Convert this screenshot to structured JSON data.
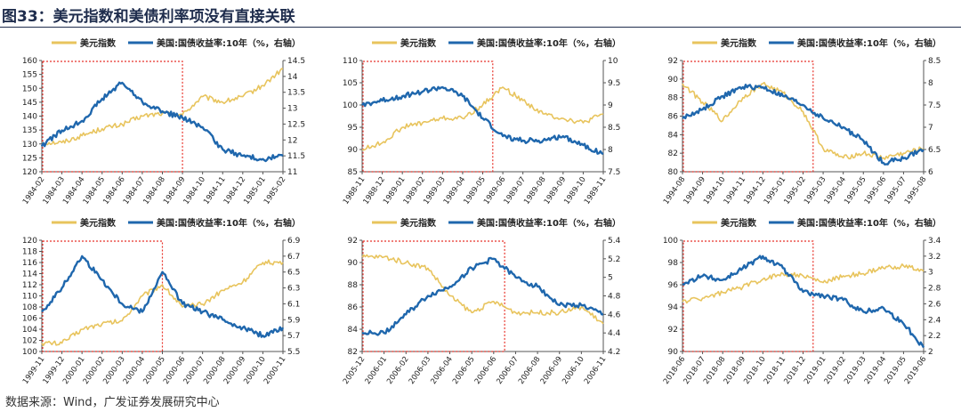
{
  "page_title": "图33：美元指数和美债利率项没有直接关联",
  "source_note": "数据来源：Wind，广发证券发展研究中心",
  "colors": {
    "dxy": "#e8c45d",
    "yield": "#1f67ad",
    "box": "#e8332a",
    "axis": "#555555"
  },
  "legend": {
    "dxy": "美元指数",
    "yield": "美国:国债收益率:10年（%，右轴）"
  },
  "chart_data": [
    {
      "type": "line",
      "title": "1984-02 ~ 1985-02",
      "categories": [
        "1984-02",
        "1984-03",
        "1984-04",
        "1984-05",
        "1984-06",
        "1984-07",
        "1984-08",
        "1984-09",
        "1984-10",
        "1984-11",
        "1984-12",
        "1985-01",
        "1985-02"
      ],
      "left_axis": {
        "min": 120,
        "max": 160,
        "ticks": [
          120,
          125,
          130,
          135,
          140,
          145,
          150,
          155,
          160
        ]
      },
      "right_axis": {
        "min": 11,
        "max": 14.5,
        "ticks": [
          11,
          11.5,
          12,
          12.5,
          13,
          13.5,
          14,
          14.5
        ]
      },
      "highlight_range": [
        0,
        7
      ],
      "series": [
        {
          "name": "美元指数",
          "axis": "left",
          "values": [
            130.5,
            130.5,
            133,
            135.5,
            137,
            140,
            141,
            140.5,
            147,
            145,
            147,
            151,
            157
          ]
        },
        {
          "name": "美国:国债收益率:10年（%，右轴）",
          "axis": "right",
          "values": [
            11.8,
            12.3,
            12.6,
            13.3,
            13.8,
            13.2,
            12.9,
            12.7,
            12.4,
            11.7,
            11.5,
            11.4,
            11.5
          ]
        }
      ]
    },
    {
      "type": "line",
      "title": "1988-11 ~ 1989-11",
      "categories": [
        "1988-11",
        "1988-12",
        "1989-01",
        "1989-02",
        "1989-03",
        "1989-04",
        "1989-05",
        "1989-06",
        "1989-07",
        "1989-08",
        "1989-09",
        "1989-10",
        "1989-11"
      ],
      "left_axis": {
        "min": 85,
        "max": 110,
        "ticks": [
          85,
          90,
          95,
          100,
          105,
          110
        ]
      },
      "right_axis": {
        "min": 7.5,
        "max": 10,
        "ticks": [
          7.5,
          8,
          8.5,
          9,
          9.5,
          10
        ]
      },
      "highlight_range": [
        0,
        6.5
      ],
      "series": [
        {
          "name": "美元指数",
          "axis": "left",
          "values": [
            90,
            91.5,
            95,
            96,
            97,
            97,
            100,
            104,
            101,
            98,
            97,
            96,
            98
          ]
        },
        {
          "name": "美国:国债收益率:10年（%，右轴）",
          "axis": "right",
          "values": [
            9.0,
            9.1,
            9.2,
            9.3,
            9.4,
            9.2,
            8.7,
            8.3,
            8.2,
            8.2,
            8.3,
            8.1,
            7.9
          ]
        }
      ]
    },
    {
      "type": "line",
      "title": "1994-08 ~ 1995-08",
      "categories": [
        "1994-08",
        "1994-09",
        "1994-10",
        "1994-11",
        "1994-12",
        "1995-01",
        "1995-02",
        "1995-03",
        "1995-04",
        "1995-05",
        "1995-06",
        "1995-07",
        "1995-08"
      ],
      "left_axis": {
        "min": 80,
        "max": 92,
        "ticks": [
          80,
          82,
          84,
          86,
          88,
          90,
          92
        ]
      },
      "right_axis": {
        "min": 6,
        "max": 8.5,
        "ticks": [
          6,
          6.5,
          7,
          7.5,
          8,
          8.5
        ]
      },
      "highlight_range": [
        0,
        6.5
      ],
      "series": [
        {
          "name": "美元指数",
          "axis": "left",
          "values": [
            89.5,
            87.5,
            85.5,
            88,
            89.5,
            88.5,
            86.5,
            82.5,
            81.5,
            82,
            81.5,
            82,
            82.5
          ]
        },
        {
          "name": "美国:国债收益率:10年（%，右轴）",
          "axis": "right",
          "values": [
            7.2,
            7.4,
            7.7,
            7.9,
            7.9,
            7.7,
            7.5,
            7.2,
            7.0,
            6.7,
            6.2,
            6.3,
            6.5
          ]
        }
      ]
    },
    {
      "type": "line",
      "title": "1999-11 ~ 2000-11",
      "categories": [
        "1999-11",
        "1999-12",
        "2000-01",
        "2000-02",
        "2000-03",
        "2000-04",
        "2000-05",
        "2000-06",
        "2000-07",
        "2000-08",
        "2000-09",
        "2000-10",
        "2000-11"
      ],
      "left_axis": {
        "min": 100,
        "max": 120,
        "ticks": [
          100,
          102,
          104,
          106,
          108,
          110,
          112,
          114,
          116,
          118,
          120
        ]
      },
      "right_axis": {
        "min": 5.5,
        "max": 6.9,
        "ticks": [
          5.5,
          5.7,
          5.9,
          6.1,
          6.3,
          6.5,
          6.7,
          6.9
        ]
      },
      "highlight_range": [
        0,
        6
      ],
      "series": [
        {
          "name": "美元指数",
          "axis": "left",
          "values": [
            101.5,
            101.5,
            104,
            105,
            105.5,
            110,
            112,
            108,
            108.5,
            111,
            112.5,
            116,
            116
          ]
        },
        {
          "name": "美国:国债收益率:10年（%，右轴）",
          "axis": "right",
          "values": [
            6.0,
            6.3,
            6.7,
            6.4,
            6.1,
            6.0,
            6.5,
            6.1,
            6.0,
            5.9,
            5.8,
            5.7,
            5.8
          ]
        }
      ]
    },
    {
      "type": "line",
      "title": "2005-12 ~ 2006-11",
      "categories": [
        "2005-12",
        "2006-01",
        "2006-02",
        "2006-03",
        "2006-04",
        "2006-05",
        "2006-06",
        "2006-07",
        "2006-08",
        "2006-09",
        "2006-10",
        "2006-11"
      ],
      "left_axis": {
        "min": 82,
        "max": 92,
        "ticks": [
          82,
          84,
          86,
          88,
          90,
          92
        ]
      },
      "right_axis": {
        "min": 4.2,
        "max": 5.4,
        "ticks": [
          4.2,
          4.4,
          4.6,
          4.8,
          5,
          5.2,
          5.4
        ]
      },
      "highlight_range": [
        0,
        6.5
      ],
      "series": [
        {
          "name": "美元指数",
          "axis": "left",
          "values": [
            90.5,
            90.5,
            90,
            89.5,
            87,
            85.5,
            86.5,
            85.5,
            85.5,
            85.5,
            86,
            84.5
          ]
        },
        {
          "name": "美国:国债收益率:10年（%，右轴）",
          "axis": "right",
          "values": [
            4.4,
            4.4,
            4.6,
            4.8,
            4.9,
            5.1,
            5.2,
            5.0,
            4.9,
            4.7,
            4.7,
            4.6
          ]
        }
      ]
    },
    {
      "type": "line",
      "title": "2018-06 ~ 2019-06",
      "categories": [
        "2018-06",
        "2018-07",
        "2018-08",
        "2018-09",
        "2018-10",
        "2018-11",
        "2018-12",
        "2019-01",
        "2019-02",
        "2019-03",
        "2019-04",
        "2019-05",
        "2019-06"
      ],
      "left_axis": {
        "min": 90,
        "max": 100,
        "ticks": [
          90,
          92,
          94,
          96,
          98,
          100
        ]
      },
      "right_axis": {
        "min": 2,
        "max": 3.4,
        "ticks": [
          2,
          2.2,
          2.4,
          2.6,
          2.8,
          3,
          3.2,
          3.4
        ]
      },
      "highlight_range": [
        0,
        6.5
      ],
      "series": [
        {
          "name": "美元指数",
          "axis": "left",
          "values": [
            94.5,
            94.8,
            95.3,
            95.8,
            96.5,
            97,
            96.8,
            96.2,
            96.8,
            97,
            97.5,
            97.7,
            97.2
          ]
        },
        {
          "name": "美国:国债收益率:10年（%，右轴）",
          "axis": "right",
          "values": [
            2.85,
            2.95,
            2.9,
            3.05,
            3.2,
            3.05,
            2.75,
            2.7,
            2.65,
            2.5,
            2.55,
            2.35,
            2.05
          ]
        }
      ]
    }
  ]
}
